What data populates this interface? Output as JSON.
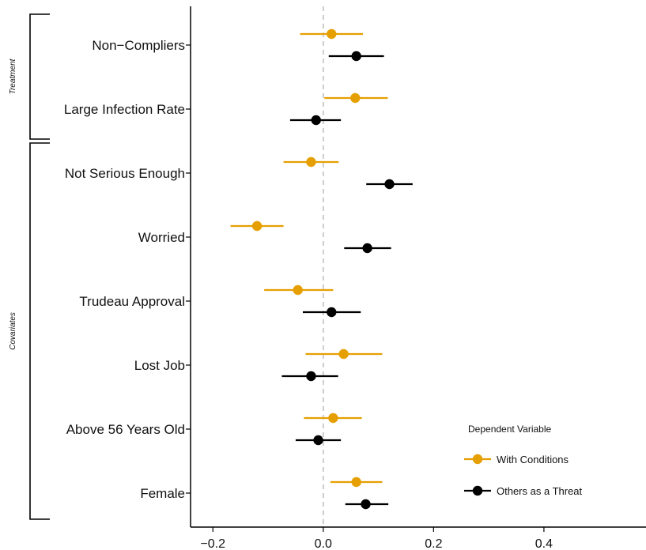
{
  "chart_data": {
    "type": "scatter",
    "subtype": "coefficient-plot",
    "categories": [
      "Non−Compliers",
      "Large Infection Rate",
      "Not Serious Enough",
      "Worried",
      "Trudeau Approval",
      "Lost Job",
      "Above 56 Years Old",
      "Female"
    ],
    "groups": [
      {
        "label": "Treatment",
        "categories": [
          "Non−Compliers",
          "Large Infection Rate"
        ]
      },
      {
        "label": "Covariates",
        "categories": [
          "Not Serious Enough",
          "Worried",
          "Trudeau Approval",
          "Lost Job",
          "Above 56 Years Old",
          "Female"
        ]
      }
    ],
    "series": [
      {
        "name": "With Conditions",
        "color": "#E69F00",
        "estimates": [
          0.015,
          0.058,
          -0.022,
          -0.12,
          -0.046,
          0.037,
          0.018,
          0.06
        ],
        "ci_low": [
          -0.042,
          0.002,
          -0.072,
          -0.168,
          -0.107,
          -0.032,
          -0.035,
          0.013
        ],
        "ci_high": [
          0.072,
          0.117,
          0.028,
          -0.072,
          0.018,
          0.107,
          0.07,
          0.107
        ]
      },
      {
        "name": "Others as a Threat",
        "color": "#000000",
        "estimates": [
          0.06,
          -0.013,
          0.12,
          0.08,
          0.015,
          -0.022,
          -0.009,
          0.077
        ],
        "ci_low": [
          0.01,
          -0.06,
          0.078,
          0.038,
          -0.037,
          -0.075,
          -0.05,
          0.04
        ],
        "ci_high": [
          0.11,
          0.032,
          0.162,
          0.123,
          0.068,
          0.027,
          0.032,
          0.118
        ]
      }
    ],
    "x_ticks": [
      -0.2,
      0.0,
      0.2,
      0.4
    ],
    "x_tick_labels": [
      "−0.2",
      "0.0",
      "0.2",
      "0.4"
    ],
    "xlim": [
      -0.245,
      0.59
    ],
    "reference_line": 0,
    "legend": {
      "title": "Dependent Variable",
      "placement": "bottom-right"
    },
    "grid": false
  }
}
